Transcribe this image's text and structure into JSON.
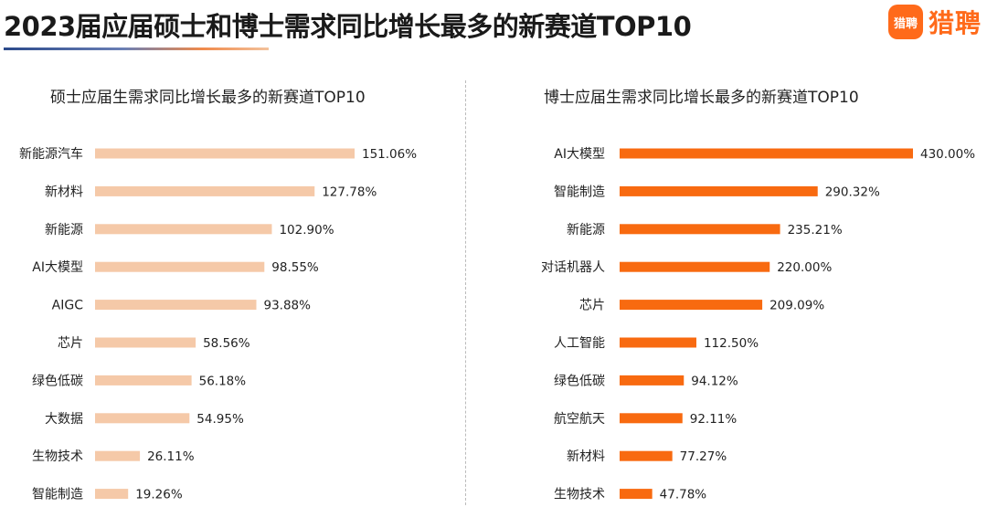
{
  "page": {
    "title": "2023届应届硕士和博士需求同比增长最多的新赛道TOP10",
    "logo_badge": "猎聘",
    "logo_text": "猎聘"
  },
  "colors": {
    "master_bar": "#f5c9a8",
    "phd_bar": "#f86a10",
    "accent": "#ff6a1a"
  },
  "chart_data": [
    {
      "type": "bar",
      "orientation": "horizontal",
      "title": "硕士应届生需求同比增长最多的新赛道TOP10",
      "categories": [
        "新能源汽车",
        "新材料",
        "新能源",
        "AI大模型",
        "AIGC",
        "芯片",
        "绿色低碳",
        "大数据",
        "生物技术",
        "智能制造"
      ],
      "values": [
        151.06,
        127.78,
        102.9,
        98.55,
        93.88,
        58.56,
        56.18,
        54.95,
        26.11,
        19.26
      ],
      "value_labels": [
        "151.06%",
        "127.78%",
        "102.90%",
        "98.55%",
        "93.88%",
        "58.56%",
        "56.18%",
        "54.95%",
        "26.11%",
        "19.26%"
      ],
      "unit": "%"
    },
    {
      "type": "bar",
      "orientation": "horizontal",
      "title": "博士应届生需求同比增长最多的新赛道TOP10",
      "categories": [
        "AI大模型",
        "智能制造",
        "新能源",
        "对话机器人",
        "芯片",
        "人工智能",
        "绿色低碳",
        "航空航天",
        "新材料",
        "生物技术"
      ],
      "values": [
        430.0,
        290.32,
        235.21,
        220.0,
        209.09,
        112.5,
        94.12,
        92.11,
        77.27,
        47.78
      ],
      "value_labels": [
        "430.00%",
        "290.32%",
        "235.21%",
        "220.00%",
        "209.09%",
        "112.50%",
        "94.12%",
        "92.11%",
        "77.27%",
        "47.78%"
      ],
      "unit": "%"
    }
  ]
}
